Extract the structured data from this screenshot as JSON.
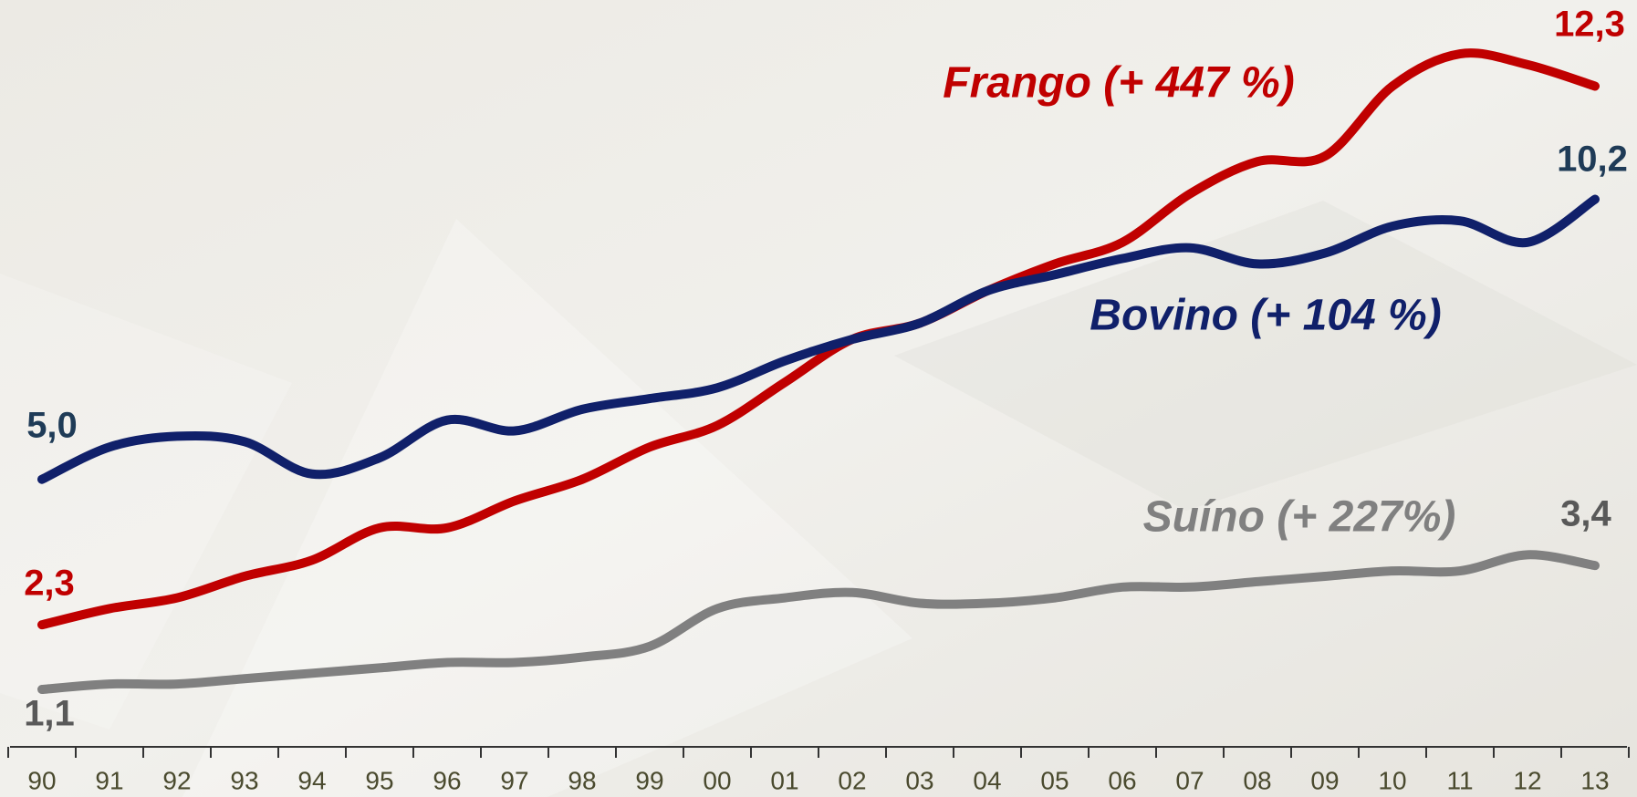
{
  "chart_data": {
    "type": "line",
    "categories": [
      "90",
      "91",
      "92",
      "93",
      "94",
      "95",
      "96",
      "97",
      "98",
      "99",
      "00",
      "01",
      "02",
      "03",
      "04",
      "05",
      "06",
      "07",
      "08",
      "09",
      "10",
      "11",
      "12",
      "13"
    ],
    "ylim": [
      0,
      13.9
    ],
    "series": [
      {
        "name": "Frango  (+ 447 %)",
        "color": "#c00000",
        "values": [
          2.3,
          2.6,
          2.8,
          3.2,
          3.5,
          4.1,
          4.1,
          4.6,
          5.0,
          5.6,
          6.0,
          6.8,
          7.6,
          7.9,
          8.5,
          9.0,
          9.4,
          10.3,
          10.9,
          11.0,
          12.3,
          12.9,
          12.7,
          12.3
        ],
        "value_labels": [
          "2,3",
          null,
          null,
          null,
          null,
          null,
          null,
          null,
          null,
          null,
          null,
          null,
          null,
          null,
          null,
          null,
          null,
          null,
          null,
          null,
          null,
          null,
          null,
          "12,3"
        ]
      },
      {
        "name": "Bovino (+ 104 %)",
        "color": "#10206a",
        "values": [
          5.0,
          5.6,
          5.8,
          5.7,
          5.1,
          5.4,
          6.1,
          5.9,
          6.3,
          6.5,
          6.7,
          7.2,
          7.6,
          7.9,
          8.5,
          8.8,
          9.1,
          9.3,
          9.0,
          9.2,
          9.7,
          9.8,
          9.4,
          10.2
        ],
        "value_labels": [
          "5,0",
          null,
          null,
          null,
          null,
          null,
          null,
          null,
          null,
          null,
          null,
          null,
          null,
          null,
          null,
          null,
          null,
          null,
          null,
          null,
          null,
          null,
          null,
          "10,2"
        ]
      },
      {
        "name": "Suíno (+ 227%)",
        "color": "#808080",
        "values": [
          1.1,
          1.2,
          1.2,
          1.3,
          1.4,
          1.5,
          1.6,
          1.6,
          1.7,
          1.9,
          2.6,
          2.8,
          2.9,
          2.7,
          2.7,
          2.8,
          3.0,
          3.0,
          3.1,
          3.2,
          3.3,
          3.3,
          3.6,
          3.4
        ],
        "value_labels": [
          "1,1",
          null,
          null,
          null,
          null,
          null,
          null,
          null,
          null,
          null,
          null,
          null,
          null,
          null,
          null,
          null,
          null,
          null,
          null,
          null,
          null,
          null,
          null,
          "3,4"
        ]
      }
    ]
  }
}
